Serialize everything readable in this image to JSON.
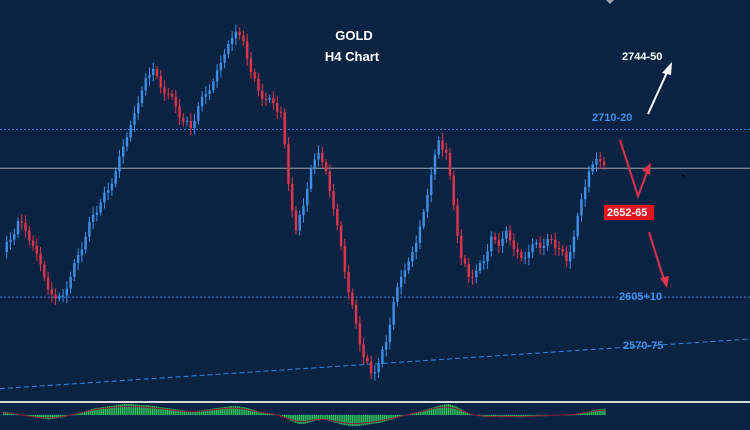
{
  "chart_data": {
    "type": "candlestick",
    "title": "GOLD",
    "subtitle": "H4 Chart",
    "colors": {
      "background": "#0b2343",
      "bull": "#3f8ee8",
      "bear": "#e0344a",
      "level_line": "#2e86e0",
      "current_price_line": "#9aa3ad",
      "white_arrow": "#ffffff",
      "red_arrow": "#e0344a",
      "histogram": "#2fbf5a"
    },
    "levels": [
      {
        "label": "2744-50",
        "price": 2747,
        "color": "#ffffff",
        "line": false
      },
      {
        "label": "2710-20",
        "price": 2715,
        "color": "#3f8ee8",
        "line": true
      },
      {
        "label": "2652-65",
        "price": 2658,
        "color": "#ffffff",
        "badge": "#e0151f",
        "line": false
      },
      {
        "label": "2605+10",
        "price": 2607,
        "color": "#3f8ee8",
        "line": true
      },
      {
        "label": "2570-75",
        "price": 2572,
        "color": "#3f8ee8",
        "line": false
      }
    ],
    "current_price": 2690,
    "ylim": [
      2542,
      2792
    ],
    "trendline": {
      "start_price": 2548,
      "end_price": 2580
    },
    "closes": [
      2636,
      2644,
      2656,
      2650,
      2640,
      2628,
      2612,
      2606,
      2608,
      2620,
      2634,
      2646,
      2660,
      2668,
      2676,
      2688,
      2704,
      2718,
      2732,
      2748,
      2754,
      2742,
      2738,
      2730,
      2720,
      2716,
      2730,
      2738,
      2746,
      2758,
      2770,
      2778,
      2772,
      2752,
      2740,
      2734,
      2732,
      2726,
      2680,
      2650,
      2666,
      2690,
      2700,
      2688,
      2664,
      2640,
      2610,
      2590,
      2568,
      2558,
      2564,
      2578,
      2604,
      2620,
      2630,
      2642,
      2662,
      2686,
      2708,
      2700,
      2666,
      2632,
      2620,
      2624,
      2630,
      2646,
      2640,
      2650,
      2638,
      2632,
      2636,
      2642,
      2640,
      2644,
      2638,
      2630,
      2646,
      2670,
      2688,
      2696,
      2692
    ],
    "histogram": [
      0.3,
      0.2,
      0.1,
      -0.1,
      -0.2,
      -0.3,
      -0.4,
      -0.3,
      -0.2,
      0.0,
      0.2,
      0.4,
      0.6,
      0.7,
      0.8,
      0.9,
      1.0,
      1.0,
      0.9,
      0.9,
      0.8,
      0.7,
      0.6,
      0.5,
      0.4,
      0.3,
      0.4,
      0.5,
      0.6,
      0.7,
      0.8,
      0.8,
      0.7,
      0.5,
      0.3,
      0.2,
      0.1,
      -0.1,
      -0.5,
      -0.8,
      -0.8,
      -0.6,
      -0.4,
      -0.5,
      -0.7,
      -0.9,
      -1.0,
      -1.0,
      -0.9,
      -0.8,
      -0.7,
      -0.5,
      -0.3,
      -0.1,
      0.1,
      0.3,
      0.5,
      0.7,
      0.9,
      1.0,
      0.8,
      0.4,
      0.1,
      -0.1,
      -0.2,
      -0.1,
      -0.2,
      -0.1,
      -0.2,
      -0.2,
      -0.1,
      -0.1,
      -0.1,
      0.0,
      0.0,
      0.0,
      0.1,
      0.2,
      0.4,
      0.5,
      0.6
    ]
  }
}
